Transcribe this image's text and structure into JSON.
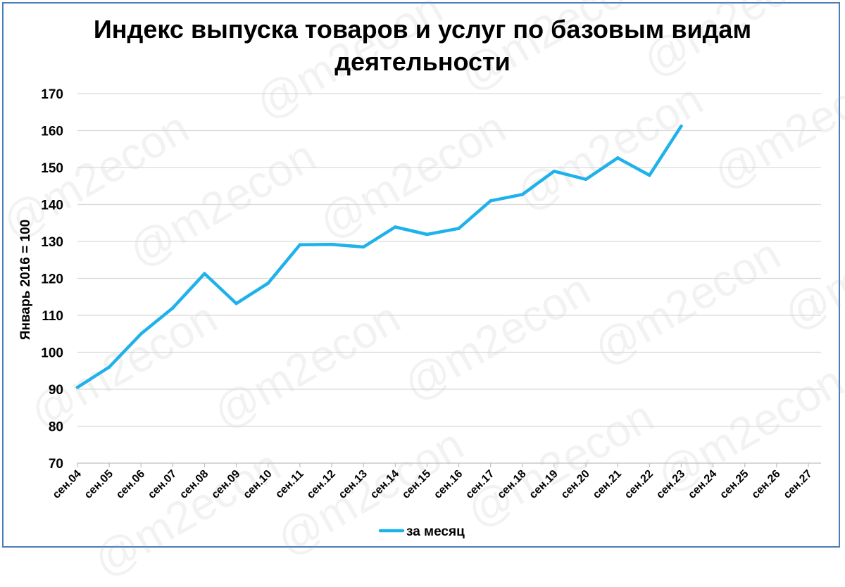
{
  "chart_data": {
    "type": "line",
    "title": "Индекс выпуска товаров и услуг по базовым видам деятельности",
    "title_lines": [
      "Индекс выпуска товаров и услуг по базовым видам",
      "деятельности"
    ],
    "ylabel": "Январь 2016 = 100",
    "xlabel": "",
    "ylim": [
      70,
      170
    ],
    "yticks": [
      70,
      80,
      90,
      100,
      110,
      120,
      130,
      140,
      150,
      160,
      170
    ],
    "grid": true,
    "legend_position": "bottom",
    "categories": [
      "сен.04",
      "сен.05",
      "сен.06",
      "сен.07",
      "сен.08",
      "сен.09",
      "сен.10",
      "сен.11",
      "сен.12",
      "сен.13",
      "сен.14",
      "сен.15",
      "сен.16",
      "сен.17",
      "сен.18",
      "сен.19",
      "сен.20",
      "сен.21",
      "сен.22",
      "сен.23",
      "сен.24",
      "сен.25",
      "сен.26",
      "сен.27"
    ],
    "series": [
      {
        "name": "за месяц",
        "color": "#1fb2ea",
        "values": [
          90.5,
          96,
          105,
          112,
          121.3,
          113.2,
          118.7,
          129.1,
          129.2,
          128.5,
          133.9,
          131.9,
          133.5,
          141,
          142.7,
          149,
          146.8,
          152.6,
          147.9,
          161.2,
          null,
          null,
          null,
          null
        ]
      }
    ]
  },
  "watermark": {
    "text": "@m2econ"
  }
}
